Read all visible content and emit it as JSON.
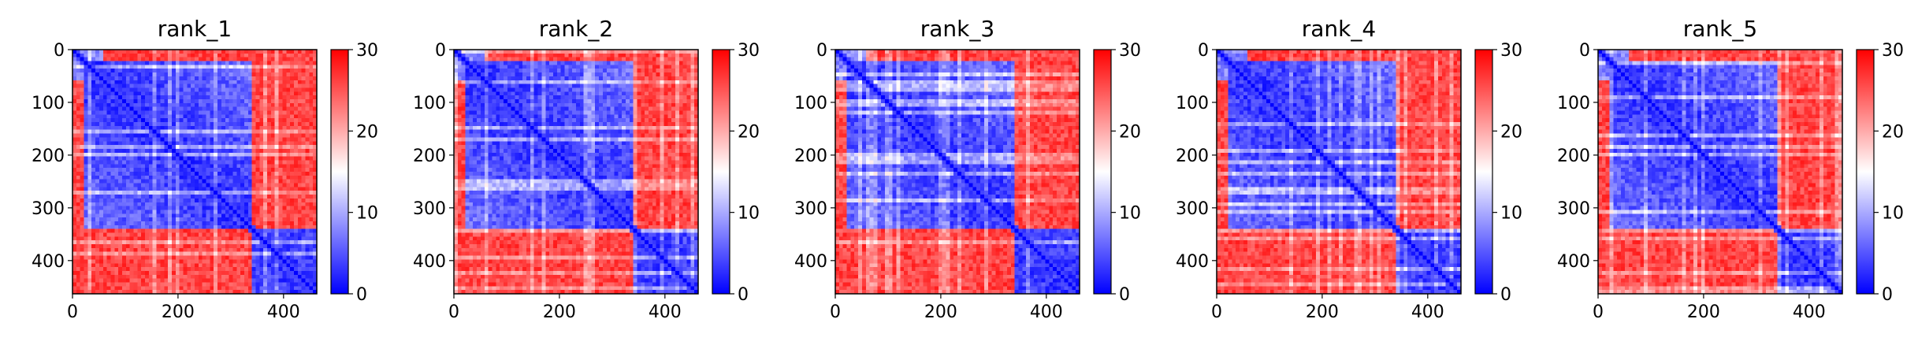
{
  "chart_data": [
    {
      "type": "heatmap",
      "title": "rank_1",
      "variant": 1,
      "xlim": [
        0,
        463
      ],
      "ylim": [
        463,
        0
      ],
      "xticks": [
        "0",
        "200",
        "400"
      ],
      "yticks": [
        "0",
        "100",
        "200",
        "300",
        "400"
      ],
      "colorbar": {
        "vmin": 0,
        "vmax": 30,
        "ticks": [
          "0",
          "10",
          "20",
          "30"
        ],
        "colormap": "bwr"
      },
      "blocks": {
        "boundary": 340,
        "early_band_end": 25,
        "within_block": "low",
        "between_block": "high"
      }
    },
    {
      "type": "heatmap",
      "title": "rank_2",
      "variant": 2,
      "xlim": [
        0,
        463
      ],
      "ylim": [
        463,
        0
      ],
      "xticks": [
        "0",
        "200",
        "400"
      ],
      "yticks": [
        "0",
        "100",
        "200",
        "300",
        "400"
      ],
      "colorbar": {
        "vmin": 0,
        "vmax": 30,
        "ticks": [
          "0",
          "10",
          "20",
          "30"
        ],
        "colormap": "bwr"
      },
      "blocks": {
        "boundary": 340,
        "early_band_end": 25,
        "within_block": "low",
        "between_block": "high"
      }
    },
    {
      "type": "heatmap",
      "title": "rank_3",
      "variant": 3,
      "xlim": [
        0,
        463
      ],
      "ylim": [
        463,
        0
      ],
      "xticks": [
        "0",
        "200",
        "400"
      ],
      "yticks": [
        "0",
        "100",
        "200",
        "300",
        "400"
      ],
      "colorbar": {
        "vmin": 0,
        "vmax": 30,
        "ticks": [
          "0",
          "10",
          "20",
          "30"
        ],
        "colormap": "bwr"
      },
      "blocks": {
        "boundary": 340,
        "early_band_end": 25,
        "within_block": "low",
        "between_block": "high"
      }
    },
    {
      "type": "heatmap",
      "title": "rank_4",
      "variant": 4,
      "xlim": [
        0,
        463
      ],
      "ylim": [
        463,
        0
      ],
      "xticks": [
        "0",
        "200",
        "400"
      ],
      "yticks": [
        "0",
        "100",
        "200",
        "300",
        "400"
      ],
      "colorbar": {
        "vmin": 0,
        "vmax": 30,
        "ticks": [
          "0",
          "10",
          "20",
          "30"
        ],
        "colormap": "bwr"
      },
      "blocks": {
        "boundary": 340,
        "early_band_end": 25,
        "within_block": "low",
        "between_block": "high"
      }
    },
    {
      "type": "heatmap",
      "title": "rank_5",
      "variant": 5,
      "xlim": [
        0,
        463
      ],
      "ylim": [
        463,
        0
      ],
      "xticks": [
        "0",
        "200",
        "400"
      ],
      "yticks": [
        "0",
        "100",
        "200",
        "300",
        "400"
      ],
      "colorbar": {
        "vmin": 0,
        "vmax": 30,
        "ticks": [
          "0",
          "10",
          "20",
          "30"
        ],
        "colormap": "bwr"
      },
      "blocks": {
        "boundary": 340,
        "early_band_end": 25,
        "within_block": "low",
        "between_block": "high"
      }
    }
  ],
  "colors": {
    "low": "#0000ff",
    "mid": "#ffffff",
    "high": "#ff0000",
    "axis": "#000000"
  }
}
